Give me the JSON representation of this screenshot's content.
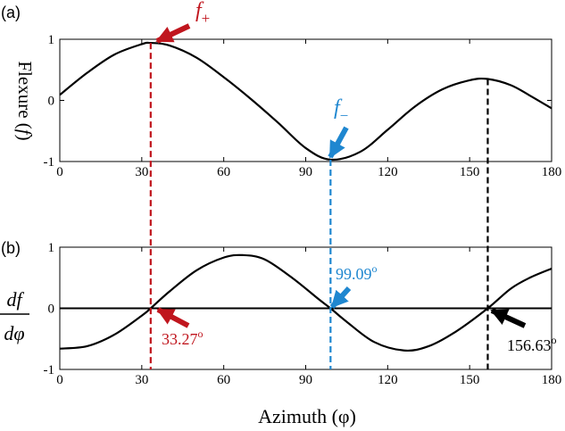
{
  "figure": {
    "xlabel": "Azimuth (φ)",
    "colors": {
      "red": "#c0161e",
      "blue": "#1f87d0",
      "black": "#000000"
    }
  },
  "chart_data": [
    {
      "panel_label": "(a)",
      "type": "line",
      "ylabel": "Flexure (f)",
      "ylabel_main": "Flexure (",
      "ylabel_italic": "f",
      "ylabel_end": ")",
      "xlim": [
        0,
        180
      ],
      "ylim": [
        -1,
        1
      ],
      "xticks": [
        "0",
        "30",
        "60",
        "90",
        "120",
        "150",
        "180"
      ],
      "yticks": [
        "-1",
        "0",
        "1"
      ],
      "series": [
        {
          "x": [
            0,
            10,
            20,
            30,
            33.27,
            40,
            50,
            60,
            70,
            80,
            90,
            99.09,
            110,
            120,
            130,
            140,
            150,
            156.63,
            165,
            172,
            180
          ],
          "y": [
            0.09,
            0.45,
            0.75,
            0.92,
            0.94,
            0.9,
            0.7,
            0.38,
            0.02,
            -0.37,
            -0.78,
            -0.97,
            -0.84,
            -0.48,
            -0.1,
            0.18,
            0.33,
            0.35,
            0.25,
            0.08,
            -0.13
          ]
        }
      ],
      "annotations": {
        "plus": {
          "base": "f",
          "sub": "+"
        },
        "minus": {
          "base": "f",
          "sub": "−"
        }
      }
    },
    {
      "panel_label": "(b)",
      "type": "line",
      "ylabel": "df/dφ",
      "ylabel_num": "df",
      "ylabel_den": "dφ",
      "xlim": [
        0,
        180
      ],
      "ylim": [
        -1,
        1
      ],
      "xticks": [
        "0",
        "30",
        "60",
        "90",
        "120",
        "150",
        "180"
      ],
      "yticks": [
        "-1",
        "0",
        "1"
      ],
      "series": [
        {
          "x": [
            0,
            10,
            20,
            30,
            33.27,
            40,
            50,
            60,
            67,
            75,
            85,
            95,
            99.09,
            105,
            115,
            126,
            135,
            145,
            156.63,
            165,
            172,
            180
          ],
          "y": [
            -0.66,
            -0.62,
            -0.43,
            -0.12,
            0.0,
            0.27,
            0.62,
            0.83,
            0.87,
            0.8,
            0.5,
            0.14,
            0.0,
            -0.22,
            -0.55,
            -0.69,
            -0.62,
            -0.38,
            0.0,
            0.32,
            0.5,
            0.65
          ]
        }
      ],
      "annotations": {
        "zero_a": "33.27",
        "zero_b": "99.09",
        "zero_c": "156.63",
        "degree": "o"
      }
    }
  ],
  "guides": [
    {
      "x": 33.27,
      "color": "red"
    },
    {
      "x": 99.09,
      "color": "blue"
    },
    {
      "x": 156.63,
      "color": "black"
    }
  ]
}
